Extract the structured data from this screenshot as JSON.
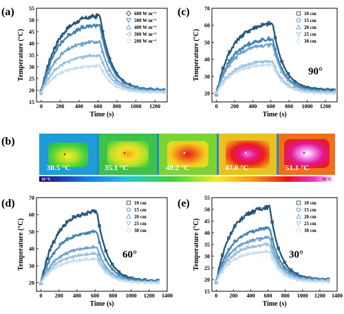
{
  "chart_data": [
    {
      "panel": "(a)",
      "type": "line",
      "xlabel": "Time (s)",
      "ylabel": "Temperature (°C)",
      "xlim": [
        -50,
        1330
      ],
      "ylim": [
        15,
        55
      ],
      "xticks": [
        0,
        200,
        400,
        600,
        800,
        1000,
        1200
      ],
      "yticks": [
        15,
        20,
        25,
        30,
        35,
        40,
        45,
        50,
        55
      ],
      "legend_position": "top-right",
      "series": [
        {
          "name": "600 W m⁻²",
          "marker": "diamond",
          "color": "#1b4d73",
          "start": 19,
          "peak": 52,
          "end": 20
        },
        {
          "name": "500 W m⁻²",
          "marker": "triangle-down",
          "color": "#3b7eae",
          "start": 19,
          "peak": 48,
          "end": 20
        },
        {
          "name": "400 W m⁻²",
          "marker": "triangle-up",
          "color": "#6a9fcb",
          "start": 19,
          "peak": 41,
          "end": 19.5
        },
        {
          "name": "300 W m⁻²",
          "marker": "triangle-left",
          "color": "#98bedc",
          "start": 19,
          "peak": 35,
          "end": 19.5
        },
        {
          "name": "200 W m⁻²",
          "marker": "square",
          "color": "#c6dcee",
          "start": 19,
          "peak": 30.5,
          "end": 19
        }
      ]
    },
    {
      "panel": "(c)",
      "type": "line",
      "annotation": "90°",
      "xlabel": "Time (s)",
      "ylabel": "Temperature (°C)",
      "xlim": [
        -50,
        1330
      ],
      "ylim": [
        15,
        70
      ],
      "xticks": [
        0,
        200,
        400,
        600,
        800,
        1000,
        1200
      ],
      "yticks": [
        20,
        30,
        40,
        50,
        60,
        70
      ],
      "legend_position": "top-right",
      "series": [
        {
          "name": "10 cm",
          "marker": "square",
          "color": "#1b4d73",
          "start": 20,
          "peak": 61,
          "end": 22
        },
        {
          "name": "15 cm",
          "marker": "circle",
          "color": "#3b7eae",
          "start": 20,
          "peak": 52,
          "end": 21.5
        },
        {
          "name": "20 cm",
          "marker": "triangle-up",
          "color": "#6a9fcb",
          "start": 20,
          "peak": 49,
          "end": 21
        },
        {
          "name": "25 cm",
          "marker": "triangle-down",
          "color": "#98bedc",
          "start": 20,
          "peak": 39,
          "end": 20.5
        },
        {
          "name": "30 cm",
          "marker": "diamond",
          "color": "#c6dcee",
          "start": 20,
          "peak": 37,
          "end": 20
        }
      ]
    },
    {
      "panel": "(d)",
      "type": "line",
      "annotation": "60°",
      "xlabel": "Time (s)",
      "ylabel": "Temperature (°C)",
      "xlim": [
        -50,
        1400
      ],
      "ylim": [
        15,
        70
      ],
      "xticks": [
        0,
        200,
        400,
        600,
        800,
        1000,
        1200,
        1400
      ],
      "yticks": [
        20,
        30,
        40,
        50,
        60,
        70
      ],
      "legend_position": "top-right",
      "series": [
        {
          "name": "10 cm",
          "marker": "square",
          "color": "#1b4d73",
          "start": 20,
          "peak": 62,
          "end": 21
        },
        {
          "name": "15 cm",
          "marker": "circle",
          "color": "#3b7eae",
          "start": 20,
          "peak": 50,
          "end": 21
        },
        {
          "name": "20 cm",
          "marker": "triangle-up",
          "color": "#6a9fcb",
          "start": 20,
          "peak": 41,
          "end": 20.5
        },
        {
          "name": "25 cm",
          "marker": "triangle-down",
          "color": "#98bedc",
          "start": 20,
          "peak": 37,
          "end": 20
        },
        {
          "name": "30 cm",
          "marker": "diamond",
          "color": "#c6dcee",
          "start": 20,
          "peak": 34,
          "end": 20
        }
      ]
    },
    {
      "panel": "(e)",
      "type": "line",
      "annotation": "30°",
      "xlabel": "Time (s)",
      "ylabel": "Temperature (°C)",
      "xlim": [
        -50,
        1400
      ],
      "ylim": [
        15,
        55
      ],
      "xticks": [
        0,
        200,
        400,
        600,
        800,
        1000,
        1200,
        1400
      ],
      "yticks": [
        15,
        20,
        25,
        30,
        35,
        40,
        45,
        50,
        55
      ],
      "legend_position": "top-right",
      "series": [
        {
          "name": "10 cm",
          "marker": "square",
          "color": "#1b4d73",
          "start": 19,
          "peak": 51,
          "end": 20
        },
        {
          "name": "15 cm",
          "marker": "circle",
          "color": "#3b7eae",
          "start": 19,
          "peak": 42,
          "end": 20
        },
        {
          "name": "20 cm",
          "marker": "triangle-up",
          "color": "#6a9fcb",
          "start": 19,
          "peak": 38,
          "end": 19.5
        },
        {
          "name": "25 cm",
          "marker": "triangle-down",
          "color": "#98bedc",
          "start": 19,
          "peak": 35,
          "end": 19.5
        },
        {
          "name": "30 cm",
          "marker": "diamond",
          "color": "#c6dcee",
          "start": 19,
          "peak": 32,
          "end": 19
        }
      ]
    }
  ],
  "thermal": {
    "panel": "(b)",
    "images": [
      {
        "label": "30.5 °C",
        "level": 0.2
      },
      {
        "label": "35.1 °C",
        "level": 0.4
      },
      {
        "label": "40.2 °C",
        "level": 0.6
      },
      {
        "label": "47.0 °C",
        "level": 0.8
      },
      {
        "label": "51.1 °C",
        "level": 1.0
      }
    ],
    "colorbar_min": "10 °C",
    "colorbar_max": "50 °C"
  },
  "colors": [
    "#1b4d73",
    "#3b7eae",
    "#6a9fcb",
    "#98bedc",
    "#c6dcee"
  ]
}
